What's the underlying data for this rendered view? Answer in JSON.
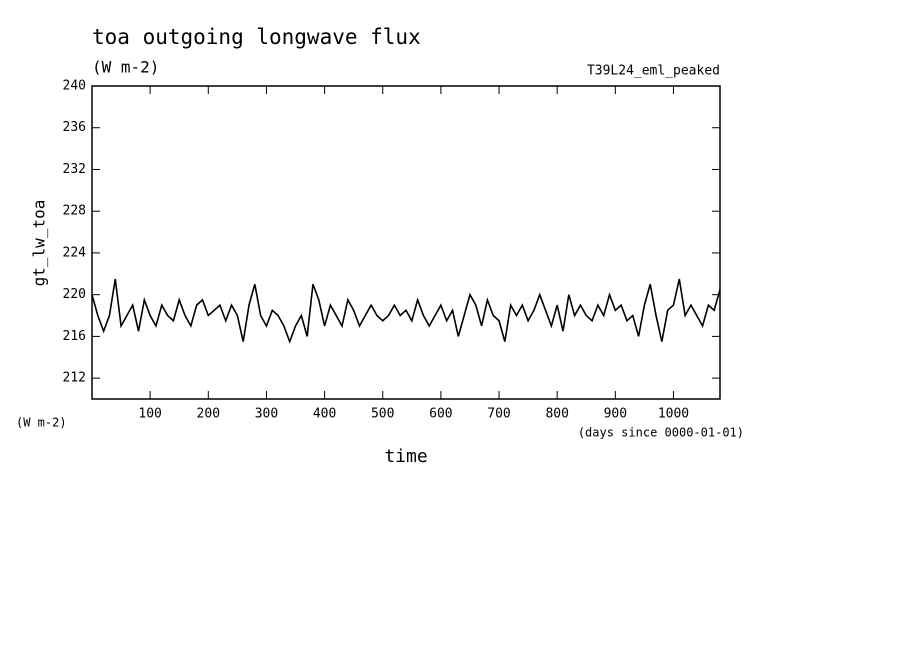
{
  "chart_data": {
    "type": "line",
    "title": "toa outgoing longwave flux",
    "subtitle": "(W m-2)",
    "run_label": "T39L24_eml_peaked",
    "y_label": "gt_lw_toa",
    "y_unit": "(W m-2)",
    "x_label": "time",
    "x_unit": "(days since 0000-01-01)",
    "color": "#000000",
    "xlim": [
      0,
      1080
    ],
    "ylim": [
      210,
      240
    ],
    "xticks": [
      100,
      200,
      300,
      400,
      500,
      600,
      700,
      800,
      900,
      1000
    ],
    "yticks": [
      212,
      216,
      220,
      224,
      228,
      232,
      236,
      240
    ],
    "x": [
      0,
      10,
      20,
      30,
      40,
      50,
      60,
      70,
      80,
      90,
      100,
      110,
      120,
      130,
      140,
      150,
      160,
      170,
      180,
      190,
      200,
      210,
      220,
      230,
      240,
      250,
      260,
      270,
      280,
      290,
      300,
      310,
      320,
      330,
      340,
      350,
      360,
      370,
      380,
      390,
      400,
      410,
      420,
      430,
      440,
      450,
      460,
      470,
      480,
      490,
      500,
      510,
      520,
      530,
      540,
      550,
      560,
      570,
      580,
      590,
      600,
      610,
      620,
      630,
      640,
      650,
      660,
      670,
      680,
      690,
      700,
      710,
      720,
      730,
      740,
      750,
      760,
      770,
      780,
      790,
      800,
      810,
      820,
      830,
      840,
      850,
      860,
      870,
      880,
      890,
      900,
      910,
      920,
      930,
      940,
      950,
      960,
      970,
      980,
      990,
      1000,
      1010,
      1020,
      1030,
      1040,
      1050,
      1060,
      1070,
      1080
    ],
    "values": [
      220,
      218,
      216.5,
      218,
      221.5,
      217,
      218,
      219,
      216.5,
      219.5,
      218,
      217,
      219,
      218,
      217.5,
      219.5,
      218,
      217,
      219,
      219.5,
      218,
      218.5,
      219,
      217.5,
      219,
      218,
      215.5,
      219,
      221,
      218,
      217,
      218.5,
      218,
      217,
      215.5,
      217,
      218,
      216,
      221,
      219.5,
      217,
      219,
      218,
      217,
      219.5,
      218.5,
      217,
      218,
      219,
      218,
      217.5,
      218,
      219,
      218,
      218.5,
      217.5,
      219.5,
      218,
      217,
      218,
      219,
      217.5,
      218.5,
      216,
      218,
      220,
      219,
      217,
      219.5,
      218,
      217.5,
      215.5,
      219,
      218,
      219,
      217.5,
      218.5,
      220,
      218.5,
      217,
      219,
      216.5,
      220,
      218,
      219,
      218,
      217.5,
      219,
      218,
      220,
      218.5,
      219,
      217.5,
      218,
      216,
      219,
      221,
      218,
      215.5,
      218.5,
      219,
      221.5,
      218,
      219,
      218,
      217,
      219,
      218.5,
      220.5
    ]
  }
}
